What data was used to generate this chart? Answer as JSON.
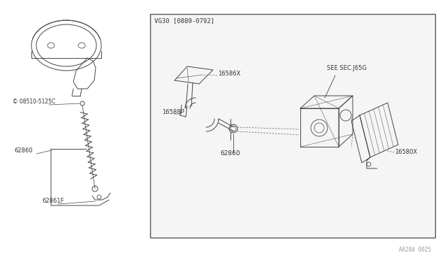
{
  "bg_color": "#ffffff",
  "box_bg": "#f5f5f5",
  "line_color": "#444444",
  "text_color": "#333333",
  "box_label": "VG30 [0889-0792]",
  "watermark": "A6284 0025",
  "labels": {
    "S08510_5125C": "© 08510-5125C",
    "label_62860_left": "62860",
    "label_62861F": "62861F",
    "label_16586X": "16586X",
    "label_16588P": "16588P",
    "label_62860_right": "62860",
    "label_16580X": "16580X",
    "label_SEE_SEC": "SEE SEC.J65G"
  },
  "fig_width": 6.4,
  "fig_height": 3.72,
  "dpi": 100
}
